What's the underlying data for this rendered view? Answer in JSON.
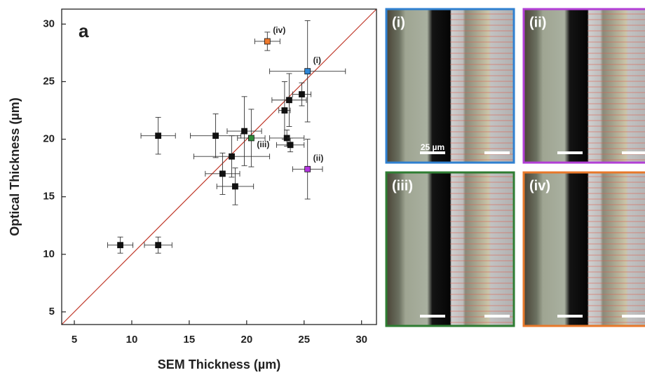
{
  "chart_data": {
    "type": "scatter",
    "panel_label": "a",
    "x_label": "SEM Thickness (µm)",
    "y_label": "Optical Thickness (µm)",
    "x": [
      9.0,
      12.3,
      12.3,
      17.3,
      19.8,
      20.4,
      18.7,
      17.9,
      19.0,
      23.3,
      23.7,
      24.8,
      23.5,
      23.8,
      25.3,
      25.3,
      21.8
    ],
    "values": [
      10.8,
      10.8,
      20.3,
      20.3,
      20.7,
      20.1,
      18.5,
      17.0,
      15.9,
      22.5,
      23.4,
      23.9,
      20.1,
      19.5,
      25.9,
      17.4,
      28.5
    ],
    "xerr": [
      1.1,
      1.2,
      1.5,
      2.2,
      1.5,
      1.2,
      3.3,
      1.5,
      1.6,
      0.5,
      1.5,
      0.8,
      1.5,
      1.2,
      3.3,
      1.3,
      1.1
    ],
    "yerr": [
      0.7,
      0.7,
      1.6,
      1.9,
      3.0,
      2.5,
      1.8,
      1.8,
      1.6,
      2.5,
      2.3,
      1.0,
      0.7,
      0.6,
      4.4,
      2.6,
      0.8
    ],
    "colors": [
      "#111111",
      "#111111",
      "#111111",
      "#111111",
      "#111111",
      "#2e8b3a",
      "#111111",
      "#111111",
      "#111111",
      "#111111",
      "#111111",
      "#111111",
      "#111111",
      "#111111",
      "#2f86d6",
      "#b436e0",
      "#ee7a2e"
    ],
    "point_labels": [
      null,
      null,
      null,
      null,
      null,
      "(iii)",
      null,
      null,
      null,
      null,
      null,
      null,
      null,
      null,
      "(i)",
      "(ii)",
      "(iv)"
    ],
    "xlim": [
      3.9,
      31.3
    ],
    "ylim": [
      3.9,
      31.3
    ],
    "xticks": [
      5,
      10,
      15,
      20,
      25,
      30
    ],
    "yticks": [
      5,
      10,
      15,
      20,
      25,
      30
    ],
    "reference_line_color": "#c0392b"
  },
  "images": {
    "scale_bar_label": "25 µm",
    "panels": [
      {
        "label": "(i)",
        "color": "#2f80d0"
      },
      {
        "label": "(ii)",
        "color": "#b23fd6"
      },
      {
        "label": "(iii)",
        "color": "#2e7d32"
      },
      {
        "label": "(iv)",
        "color": "#e8782a"
      }
    ]
  }
}
